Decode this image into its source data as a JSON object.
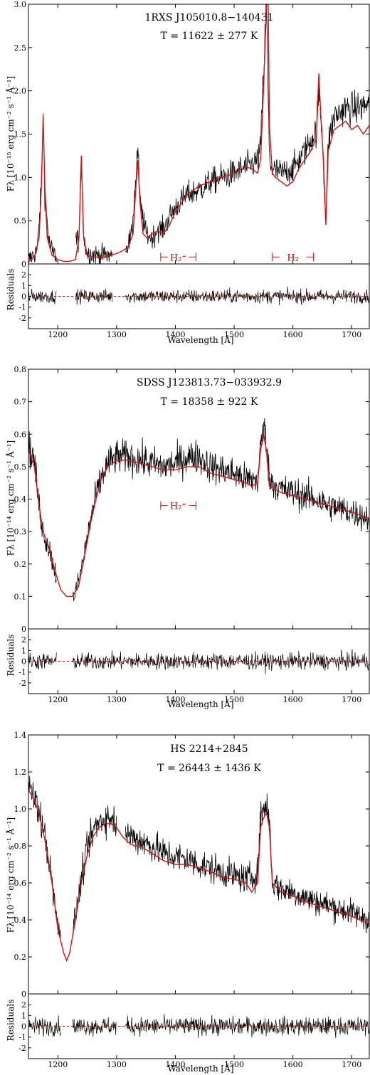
{
  "figure": {
    "panels": [
      {
        "object_name": "1RXS J105010.8−140431",
        "temperature": "T = 11622 ± 277 K",
        "ylabel": "Fλ [10⁻¹⁵ erg cm⁻² s⁻¹ Å⁻¹]",
        "residuals_label": "Residuals",
        "xlabel": "Wavelength [Å]",
        "h2_annotations": [
          {
            "label": "H₂⁺",
            "x_from": 1375,
            "x_to": 1435,
            "y": 0.08
          },
          {
            "label": "H₂",
            "x_from": 1565,
            "x_to": 1635,
            "y": 0.08
          }
        ]
      },
      {
        "object_name": "SDSS J123813.73−033932.9",
        "temperature": "T = 18358 ± 922 K",
        "ylabel": "Fλ [10⁻¹⁴ erg cm⁻² s⁻¹ Å⁻¹]",
        "residuals_label": "Residuals",
        "xlabel": "Wavelength [Å]",
        "h2_annotations": [
          {
            "label": "H₂⁺",
            "x_from": 1375,
            "x_to": 1435,
            "y": 0.38
          }
        ]
      },
      {
        "object_name": "HS 2214+2845",
        "temperature": "T = 26443 ± 1436 K",
        "ylabel": "Fλ [10⁻¹⁴ erg cm⁻² s⁻¹ Å⁻¹]",
        "residuals_label": "Residuals",
        "xlabel": "Wavelength [Å]",
        "h2_annotations": []
      }
    ],
    "colors": {
      "data": "#000000",
      "model": "#dd1111",
      "masked": "#aaaaaa",
      "residual_zero": "#dd1111"
    }
  },
  "chart_data": [
    {
      "type": "line",
      "title": "1RXS J105010.8−140431",
      "xlabel": "Wavelength [Å]",
      "ylabel": "Fλ [10⁻¹⁵ erg cm⁻² s⁻¹ Å⁻¹]",
      "xlim": [
        1150,
        1730
      ],
      "ylim": [
        0,
        3.0
      ],
      "xticks": [
        1200,
        1300,
        1400,
        1500,
        1600,
        1700
      ],
      "yticks": [
        0.5,
        1.0,
        1.5,
        2.0,
        2.5,
        3.0
      ],
      "residuals_ylim": [
        -3,
        3
      ],
      "residuals_yticks": [
        -2,
        -1,
        0,
        1,
        2
      ],
      "residuals_noise": 0.45,
      "series": [
        {
          "role": "model",
          "x": [
            1150,
            1160,
            1168,
            1172,
            1175,
            1178,
            1182,
            1190,
            1200,
            1210,
            1220,
            1230,
            1236,
            1240,
            1244,
            1250,
            1260,
            1270,
            1280,
            1290,
            1300,
            1310,
            1320,
            1328,
            1333,
            1336,
            1340,
            1345,
            1352,
            1360,
            1370,
            1380,
            1390,
            1400,
            1410,
            1420,
            1440,
            1460,
            1480,
            1500,
            1520,
            1530,
            1540,
            1545,
            1550,
            1555,
            1558,
            1560,
            1565,
            1570,
            1580,
            1590,
            1600,
            1610,
            1620,
            1630,
            1640,
            1644,
            1648,
            1652,
            1656,
            1660,
            1670,
            1680,
            1690,
            1700,
            1710,
            1720,
            1730
          ],
          "y": [
            0.02,
            0.08,
            0.3,
            0.9,
            1.7,
            0.9,
            0.3,
            0.1,
            0.05,
            0.03,
            0.03,
            0.05,
            0.3,
            1.25,
            0.3,
            0.1,
            0.08,
            0.08,
            0.08,
            0.1,
            0.12,
            0.15,
            0.2,
            0.35,
            0.9,
            1.2,
            0.7,
            0.35,
            0.3,
            0.35,
            0.38,
            0.35,
            0.45,
            0.6,
            0.7,
            0.8,
            0.9,
            0.95,
            1.0,
            1.05,
            1.12,
            1.1,
            1.05,
            1.2,
            2.0,
            3.0,
            3.0,
            1.6,
            1.05,
            1.0,
            0.95,
            0.9,
            0.95,
            1.1,
            1.2,
            1.3,
            1.45,
            2.2,
            1.65,
            1.2,
            0.45,
            1.3,
            1.55,
            1.6,
            1.65,
            1.55,
            1.6,
            1.5,
            1.6
          ]
        },
        {
          "role": "observed",
          "x": [
            1150,
            1165,
            1172,
            1175,
            1178,
            1185,
            1192,
            1198,
            1236,
            1240,
            1244,
            1250,
            1270,
            1290,
            1300,
            1315,
            1325,
            1333,
            1336,
            1340,
            1350,
            1360,
            1370,
            1380,
            1390,
            1400,
            1420,
            1440,
            1460,
            1480,
            1500,
            1520,
            1530,
            1540,
            1545,
            1550,
            1555,
            1560,
            1565,
            1580,
            1600,
            1620,
            1640,
            1644,
            1650,
            1656,
            1660,
            1670,
            1690,
            1710,
            1730
          ],
          "y": [
            0.05,
            0.15,
            0.9,
            1.75,
            0.8,
            0.25,
            0.12,
            0.1,
            0.3,
            1.2,
            0.3,
            0.12,
            0.1,
            0.1,
            0.12,
            0.18,
            0.3,
            1.0,
            1.35,
            0.7,
            0.35,
            0.3,
            0.4,
            0.4,
            0.55,
            0.65,
            0.8,
            0.85,
            0.95,
            1.0,
            1.05,
            1.12,
            1.15,
            1.2,
            1.35,
            2.2,
            3.0,
            1.2,
            1.1,
            1.05,
            1.1,
            1.3,
            1.55,
            2.0,
            1.5,
            0.45,
            1.4,
            1.7,
            1.8,
            1.8,
            1.85
          ]
        },
        {
          "role": "masked",
          "segments": [
            [
              1198,
              1230
            ],
            [
              1293,
              1315
            ]
          ]
        }
      ]
    },
    {
      "type": "line",
      "title": "SDSS J123813.73−033932.9",
      "xlabel": "Wavelength [Å]",
      "ylabel": "Fλ [10⁻¹⁴ erg cm⁻² s⁻¹ Å⁻¹]",
      "xlim": [
        1150,
        1730
      ],
      "ylim": [
        0,
        0.8
      ],
      "xticks": [
        1200,
        1300,
        1400,
        1500,
        1600,
        1700
      ],
      "yticks": [
        0.1,
        0.2,
        0.3,
        0.4,
        0.5,
        0.6,
        0.7,
        0.8
      ],
      "residuals_ylim": [
        -3,
        3
      ],
      "residuals_yticks": [
        -2,
        -1,
        0,
        1,
        2
      ],
      "residuals_noise": 0.55,
      "series": [
        {
          "role": "model",
          "x": [
            1150,
            1160,
            1168,
            1175,
            1185,
            1195,
            1205,
            1215,
            1225,
            1235,
            1245,
            1255,
            1265,
            1275,
            1285,
            1300,
            1320,
            1340,
            1360,
            1380,
            1400,
            1420,
            1440,
            1460,
            1480,
            1500,
            1520,
            1530,
            1540,
            1545,
            1550,
            1555,
            1560,
            1580,
            1600,
            1620,
            1640,
            1660,
            1680,
            1700,
            1730
          ],
          "y": [
            0.55,
            0.5,
            0.38,
            0.3,
            0.25,
            0.18,
            0.12,
            0.1,
            0.1,
            0.13,
            0.22,
            0.32,
            0.4,
            0.47,
            0.5,
            0.52,
            0.52,
            0.51,
            0.5,
            0.49,
            0.49,
            0.5,
            0.5,
            0.48,
            0.47,
            0.46,
            0.45,
            0.44,
            0.45,
            0.55,
            0.6,
            0.55,
            0.44,
            0.42,
            0.41,
            0.4,
            0.39,
            0.38,
            0.37,
            0.36,
            0.34
          ]
        },
        {
          "role": "observed",
          "x": [
            1150,
            1160,
            1168,
            1175,
            1185,
            1195,
            1205,
            1215,
            1225,
            1235,
            1245,
            1255,
            1265,
            1275,
            1285,
            1300,
            1320,
            1340,
            1360,
            1380,
            1400,
            1420,
            1440,
            1460,
            1480,
            1500,
            1520,
            1540,
            1545,
            1550,
            1555,
            1560,
            1580,
            1600,
            1620,
            1640,
            1660,
            1680,
            1700,
            1730
          ],
          "y": [
            0.56,
            0.52,
            0.38,
            0.3,
            0.25,
            0.18,
            0.12,
            0.09,
            0.09,
            0.14,
            0.23,
            0.33,
            0.41,
            0.47,
            0.51,
            0.53,
            0.53,
            0.52,
            0.51,
            0.5,
            0.51,
            0.53,
            0.53,
            0.5,
            0.49,
            0.48,
            0.46,
            0.46,
            0.56,
            0.62,
            0.58,
            0.46,
            0.43,
            0.42,
            0.41,
            0.4,
            0.38,
            0.37,
            0.36,
            0.34
          ]
        },
        {
          "role": "masked",
          "segments": [
            [
              1198,
              1225
            ]
          ]
        }
      ]
    },
    {
      "type": "line",
      "title": "HS 2214+2845",
      "xlabel": "Wavelength [Å]",
      "ylabel": "Fλ [10⁻¹⁴ erg cm⁻² s⁻¹ Å⁻¹]",
      "xlim": [
        1150,
        1730
      ],
      "ylim": [
        0,
        1.4
      ],
      "xticks": [
        1200,
        1300,
        1400,
        1500,
        1600,
        1700
      ],
      "yticks": [
        0.2,
        0.4,
        0.6,
        0.8,
        1.0,
        1.2,
        1.4
      ],
      "residuals_ylim": [
        -3,
        3
      ],
      "residuals_yticks": [
        -2,
        -1,
        0,
        1,
        2
      ],
      "residuals_noise": 0.6,
      "series": [
        {
          "role": "model",
          "x": [
            1150,
            1160,
            1170,
            1180,
            1190,
            1200,
            1210,
            1215,
            1220,
            1230,
            1240,
            1250,
            1260,
            1270,
            1280,
            1290,
            1300,
            1310,
            1320,
            1330,
            1340,
            1350,
            1360,
            1380,
            1400,
            1420,
            1440,
            1460,
            1480,
            1500,
            1520,
            1530,
            1540,
            1545,
            1550,
            1555,
            1560,
            1565,
            1580,
            1600,
            1620,
            1640,
            1660,
            1680,
            1700,
            1730
          ],
          "y": [
            1.1,
            1.05,
            0.95,
            0.8,
            0.6,
            0.35,
            0.22,
            0.18,
            0.22,
            0.4,
            0.6,
            0.75,
            0.85,
            0.9,
            0.92,
            0.92,
            0.9,
            0.85,
            0.82,
            0.8,
            0.8,
            0.78,
            0.76,
            0.72,
            0.7,
            0.7,
            0.68,
            0.66,
            0.63,
            0.62,
            0.6,
            0.55,
            0.6,
            0.9,
            0.95,
            0.98,
            0.9,
            0.6,
            0.55,
            0.53,
            0.5,
            0.48,
            0.46,
            0.44,
            0.42,
            0.38
          ]
        },
        {
          "role": "observed",
          "x": [
            1150,
            1160,
            1170,
            1180,
            1190,
            1200,
            1210,
            1215,
            1220,
            1230,
            1240,
            1250,
            1260,
            1270,
            1280,
            1290,
            1300,
            1320,
            1340,
            1360,
            1380,
            1400,
            1420,
            1440,
            1460,
            1480,
            1500,
            1520,
            1540,
            1545,
            1550,
            1555,
            1560,
            1565,
            1580,
            1600,
            1620,
            1640,
            1660,
            1680,
            1700,
            1730
          ],
          "y": [
            1.12,
            1.06,
            0.96,
            0.82,
            0.6,
            0.36,
            0.24,
            0.2,
            0.24,
            0.42,
            0.62,
            0.78,
            0.88,
            0.93,
            0.95,
            0.95,
            0.93,
            0.86,
            0.83,
            0.8,
            0.76,
            0.74,
            0.73,
            0.7,
            0.68,
            0.66,
            0.64,
            0.62,
            0.65,
            0.95,
            1.0,
            1.02,
            0.95,
            0.6,
            0.57,
            0.55,
            0.52,
            0.5,
            0.48,
            0.46,
            0.44,
            0.4
          ]
        },
        {
          "role": "masked",
          "segments": [
            [
              1205,
              1225
            ],
            [
              1300,
              1315
            ]
          ]
        }
      ]
    }
  ]
}
